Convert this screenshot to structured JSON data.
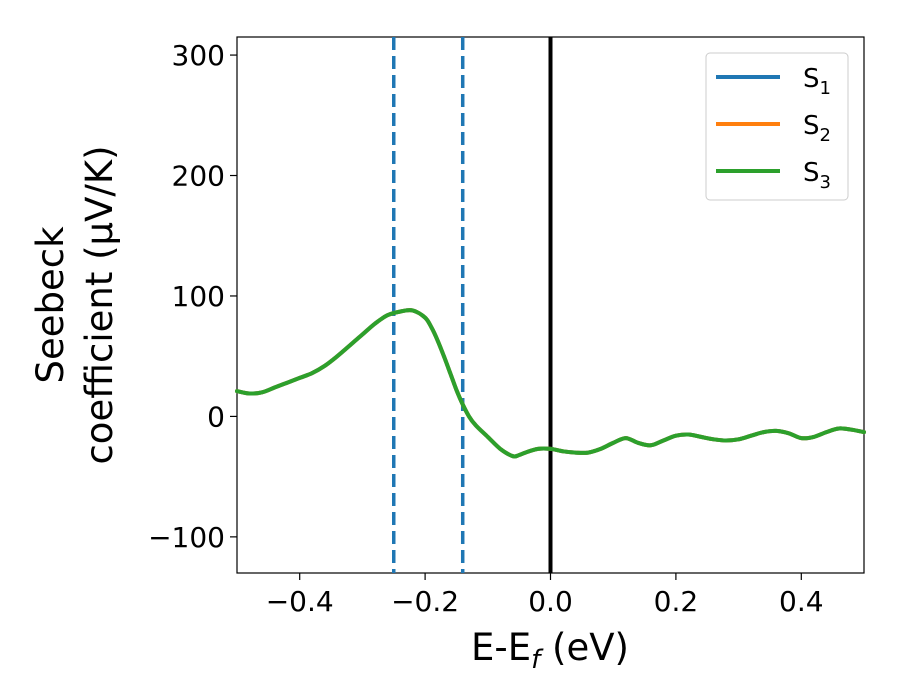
{
  "chart_data": {
    "type": "line",
    "xlabel_main": "E-E",
    "xlabel_sub": "f",
    "xlabel_unit": " (eV)",
    "ylabel_line1": "Seebeck",
    "ylabel_line2": "coefficient  (μV/K)",
    "xlim": [
      -0.5,
      0.5
    ],
    "ylim": [
      -130,
      315
    ],
    "xticks": [
      -0.4,
      -0.2,
      0.0,
      0.2,
      0.4
    ],
    "xtick_labels": [
      "−0.4",
      "−0.2",
      "0.0",
      "0.2",
      "0.4"
    ],
    "yticks": [
      -100,
      0,
      100,
      200,
      300
    ],
    "ytick_labels": [
      "−100",
      "0",
      "100",
      "200",
      "300"
    ],
    "grid": false,
    "legend_position": "top-right",
    "vlines": [
      {
        "x": -0.25,
        "style": "dashed",
        "color": "#1f77b4"
      },
      {
        "x": -0.14,
        "style": "dashed",
        "color": "#1f77b4"
      },
      {
        "x": 0.0,
        "style": "solid",
        "color": "#000000"
      }
    ],
    "series": [
      {
        "name": "S",
        "sub": "1",
        "color": "#1f77b4"
      },
      {
        "name": "S",
        "sub": "2",
        "color": "#ff7f0e"
      },
      {
        "name": "S",
        "sub": "3",
        "color": "#2ca02c"
      }
    ],
    "x": [
      -0.5,
      -0.48,
      -0.46,
      -0.44,
      -0.42,
      -0.4,
      -0.38,
      -0.36,
      -0.34,
      -0.32,
      -0.3,
      -0.28,
      -0.26,
      -0.24,
      -0.22,
      -0.2,
      -0.19,
      -0.18,
      -0.17,
      -0.16,
      -0.15,
      -0.14,
      -0.13,
      -0.12,
      -0.1,
      -0.08,
      -0.06,
      -0.05,
      -0.04,
      -0.02,
      0.0,
      0.02,
      0.04,
      0.06,
      0.08,
      0.1,
      0.12,
      0.14,
      0.16,
      0.18,
      0.2,
      0.22,
      0.24,
      0.26,
      0.28,
      0.3,
      0.32,
      0.34,
      0.36,
      0.38,
      0.4,
      0.42,
      0.44,
      0.46,
      0.48,
      0.5
    ],
    "y": [
      21,
      19,
      20,
      24,
      28,
      32,
      36,
      42,
      50,
      59,
      68,
      77,
      84,
      87,
      88,
      82,
      74,
      63,
      50,
      36,
      22,
      10,
      0,
      -7,
      -17,
      -27,
      -33,
      -32,
      -30,
      -27,
      -27,
      -29,
      -30,
      -30,
      -27,
      -22,
      -18,
      -22,
      -24,
      -20,
      -16,
      -15,
      -17,
      -19,
      -20,
      -19,
      -16,
      -13,
      -12,
      -14,
      -18,
      -17,
      -13,
      -10,
      -11,
      -13
    ]
  }
}
